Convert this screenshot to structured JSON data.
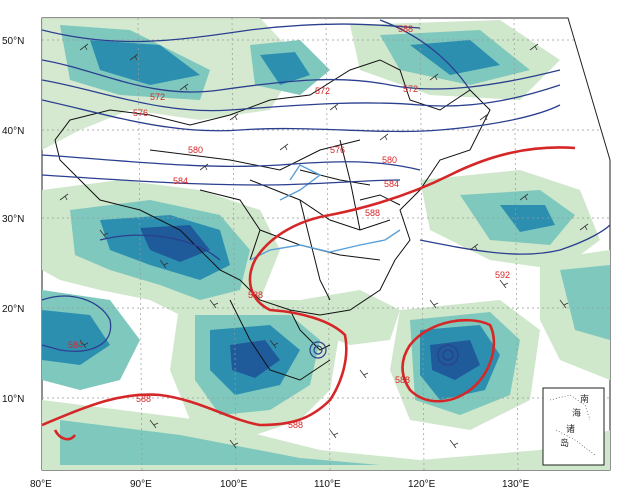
{
  "map": {
    "colors": {
      "precip_light": "#cfe7cb",
      "precip_mid": "#7fc8bd",
      "precip_teal": "#2d8fb0",
      "precip_dark": "#1f5a9a",
      "isoline_blue": "#2b3f8f",
      "isoline_red": "#d62728",
      "border": "#111111",
      "river": "#5aa0d8",
      "wind_barb": "#333333",
      "graticule": "#999999"
    },
    "axes": {
      "lat_labels": [
        "50°N",
        "40°N",
        "30°N",
        "20°N",
        "10°N"
      ],
      "lon_labels": [
        "80°E",
        "90°E",
        "100°E",
        "110°E",
        "120°E",
        "130°E"
      ]
    },
    "contour_labels": {
      "blue": [
        "588",
        "572",
        "572",
        "572",
        "576",
        "580",
        "576",
        "584",
        "580",
        "584",
        "592",
        "584"
      ],
      "red": [
        "588",
        "588",
        "588",
        "588"
      ]
    },
    "inset": {
      "labels": [
        "南",
        "海",
        "诸",
        "岛"
      ]
    }
  }
}
